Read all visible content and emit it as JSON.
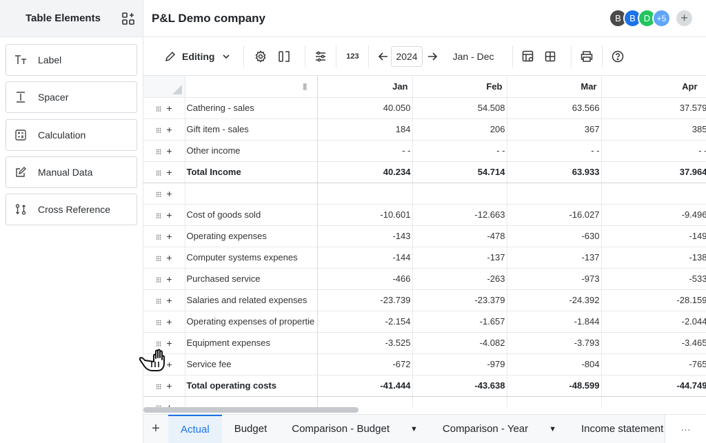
{
  "left_panel": {
    "title": "Table Elements",
    "items": [
      {
        "label": "Label",
        "icon": "text-icon"
      },
      {
        "label": "Spacer",
        "icon": "spacer-icon"
      },
      {
        "label": "Calculation",
        "icon": "calculator-icon"
      },
      {
        "label": "Manual Data",
        "icon": "edit-icon"
      },
      {
        "label": "Cross Reference",
        "icon": "cross-reference-icon"
      }
    ]
  },
  "header": {
    "company": "P&L Demo company",
    "avatars": [
      {
        "initial": "B",
        "color": "#4a4a4a"
      },
      {
        "initial": "B",
        "color": "#1a73e8"
      },
      {
        "initial": "D",
        "color": "#22c55e"
      },
      {
        "initial": "+5",
        "color": "#60a5fa"
      }
    ],
    "add_user": "+"
  },
  "toolbar": {
    "mode": "Editing",
    "year": "2024",
    "range": "Jan - Dec",
    "number_format": "123"
  },
  "table": {
    "columns": [
      "Jan",
      "Feb",
      "Mar",
      "Apr"
    ],
    "rows": [
      {
        "name": "Cathering - sales",
        "values": [
          "40.050",
          "54.508",
          "63.566",
          "37.579"
        ],
        "total": false
      },
      {
        "name": "Gift item - sales",
        "values": [
          "184",
          "206",
          "367",
          "385"
        ],
        "total": false
      },
      {
        "name": "Other income",
        "values": [
          "- -",
          "- -",
          "- -",
          "- -"
        ],
        "total": false
      },
      {
        "name": "Total Income",
        "values": [
          "40.234",
          "54.714",
          "63.933",
          "37.964"
        ],
        "total": true
      },
      {
        "name": "",
        "values": [
          "",
          "",
          "",
          ""
        ],
        "total": false
      },
      {
        "name": "Cost of goods sold",
        "values": [
          "-10.601",
          "-12.663",
          "-16.027",
          "-9.496"
        ],
        "total": false
      },
      {
        "name": "Operating expenses",
        "values": [
          "-143",
          "-478",
          "-630",
          "-149"
        ],
        "total": false
      },
      {
        "name": "Computer systems expenes",
        "values": [
          "-144",
          "-137",
          "-137",
          "-138"
        ],
        "total": false
      },
      {
        "name": "Purchased service",
        "values": [
          "-466",
          "-263",
          "-973",
          "-533"
        ],
        "total": false
      },
      {
        "name": "Salaries and related expenses",
        "values": [
          "-23.739",
          "-23.379",
          "-24.392",
          "-28.159"
        ],
        "total": false
      },
      {
        "name": "Operating expenses of propertie",
        "values": [
          "-2.154",
          "-1.657",
          "-1.844",
          "-2.044"
        ],
        "total": false
      },
      {
        "name": "Equipment expenses",
        "values": [
          "-3.525",
          "-4.082",
          "-3.793",
          "-3.465"
        ],
        "total": false
      },
      {
        "name": "Service fee",
        "values": [
          "-672",
          "-979",
          "-804",
          "-765"
        ],
        "total": false
      },
      {
        "name": "Total operating costs",
        "values": [
          "-41.444",
          "-43.638",
          "-48.599",
          "-44.749"
        ],
        "total": true
      },
      {
        "name": "",
        "values": [
          "",
          "",
          "",
          ""
        ],
        "total": false
      }
    ]
  },
  "tabs": {
    "items": [
      {
        "label": "Actual",
        "active": true,
        "dropdown": false
      },
      {
        "label": "Budget",
        "active": false,
        "dropdown": false
      },
      {
        "label": "Comparison - Budget",
        "active": false,
        "dropdown": true
      },
      {
        "label": "Comparison - Year",
        "active": false,
        "dropdown": true
      },
      {
        "label": "Income statement",
        "active": false,
        "dropdown": false
      }
    ],
    "more": "···"
  }
}
